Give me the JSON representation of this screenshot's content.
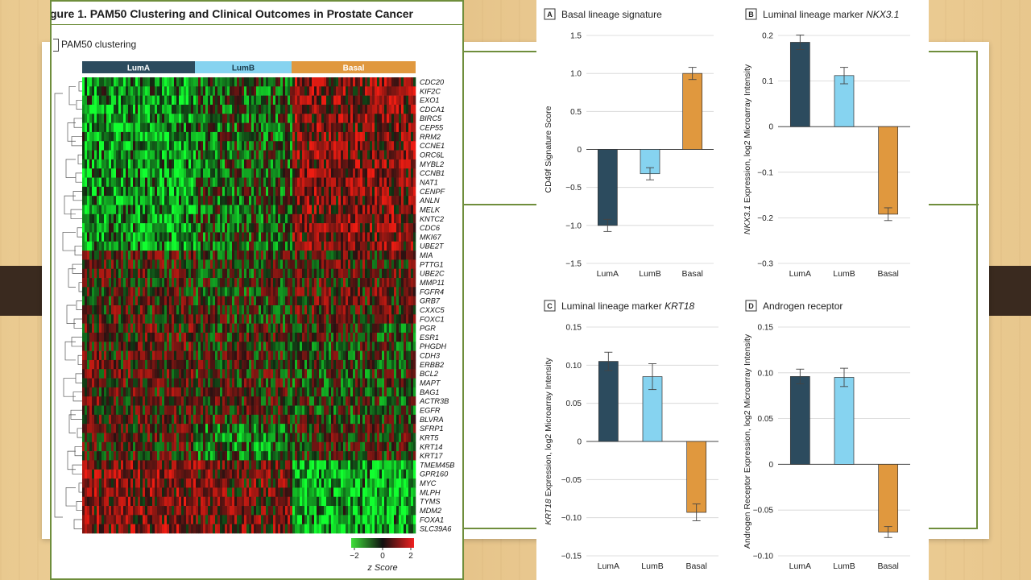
{
  "figure": {
    "title": "gure 1. PAM50 Clustering and Clinical Outcomes in Prostate Cancer",
    "subpanel_label": "PAM50 clustering"
  },
  "heatmap": {
    "groups": [
      "LumA",
      "LumB",
      "Basal"
    ],
    "group_colors": [
      "#2c4b5e",
      "#86d3f0",
      "#e0983e"
    ],
    "genes": [
      "CDC20",
      "KIF2C",
      "EXO1",
      "CDCA1",
      "BIRC5",
      "CEP55",
      "RRM2",
      "CCNE1",
      "ORC6L",
      "MYBL2",
      "CCNB1",
      "NAT1",
      "CENPF",
      "ANLN",
      "MELK",
      "KNTC2",
      "CDC6",
      "MKI67",
      "UBE2T",
      "MIA",
      "PTTG1",
      "UBE2C",
      "MMP11",
      "FGFR4",
      "GRB7",
      "CXXC5",
      "FOXC1",
      "PGR",
      "ESR1",
      "PHGDH",
      "CDH3",
      "ERBB2",
      "BCL2",
      "MAPT",
      "BAG1",
      "ACTR3B",
      "EGFR",
      "BLVRA",
      "SFRP1",
      "KRT5",
      "KRT14",
      "KRT17",
      "TMEM45B",
      "GPR160",
      "MYC",
      "MLPH",
      "TYMS",
      "MDM2",
      "FOXA1",
      "SLC39A6"
    ],
    "colorbar": {
      "ticks": [
        "−2",
        "0",
        "2"
      ],
      "label": "z Score"
    }
  },
  "chart_data": [
    {
      "type": "bar",
      "panel": "A",
      "title": "Basal lineage signature",
      "title_gene": "",
      "ylabel": "CD49f Signature Score",
      "ylabel_gene": "",
      "categories": [
        "LumA",
        "LumB",
        "Basal"
      ],
      "values": [
        -1.0,
        -0.32,
        1.0
      ],
      "errors": [
        0.08,
        0.08,
        0.08
      ],
      "ylim": [
        -1.5,
        1.5
      ],
      "yticks": [
        1.5,
        1.0,
        0.5,
        0,
        -0.5,
        -1.0,
        -1.5
      ],
      "ytick_labels": [
        "1.5",
        "1.0",
        "0.5",
        "0",
        "−0.5",
        "−1.0",
        "−1.5"
      ],
      "grid": true
    },
    {
      "type": "bar",
      "panel": "B",
      "title": "Luminal lineage marker ",
      "title_gene": "NKX3.1",
      "ylabel": " Expression, log2 Microarray Intensity",
      "ylabel_gene": "NKX3.1",
      "categories": [
        "LumA",
        "LumB",
        "Basal"
      ],
      "values": [
        0.185,
        0.112,
        -0.192
      ],
      "errors": [
        0.016,
        0.018,
        0.014
      ],
      "ylim": [
        -0.3,
        0.2
      ],
      "yticks": [
        0.2,
        0.1,
        0,
        -0.1,
        -0.2,
        -0.3
      ],
      "ytick_labels": [
        "0.2",
        "0.1",
        "0",
        "−0.1",
        "−0.2",
        "−0.3"
      ],
      "grid": true
    },
    {
      "type": "bar",
      "panel": "C",
      "title": "Luminal lineage marker ",
      "title_gene": "KRT18",
      "ylabel": " Expression, log2 Microarray Intensity",
      "ylabel_gene": "KRT18",
      "categories": [
        "LumA",
        "LumB",
        "Basal"
      ],
      "values": [
        0.105,
        0.085,
        -0.093
      ],
      "errors": [
        0.012,
        0.017,
        0.011
      ],
      "ylim": [
        -0.15,
        0.15
      ],
      "yticks": [
        0.15,
        0.1,
        0.05,
        0,
        -0.05,
        -0.1,
        -0.15
      ],
      "ytick_labels": [
        "0.15",
        "0.10",
        "0.05",
        "0",
        "−0.05",
        "−0.10",
        "−0.15"
      ],
      "grid": true
    },
    {
      "type": "bar",
      "panel": "D",
      "title": "Androgen receptor",
      "title_gene": "",
      "ylabel": "Androgen Receptor Expression, log2 Microarray Intensity",
      "ylabel_gene": "",
      "categories": [
        "LumA",
        "LumB",
        "Basal"
      ],
      "values": [
        0.096,
        0.095,
        -0.074
      ],
      "errors": [
        0.008,
        0.01,
        0.006
      ],
      "ylim": [
        -0.1,
        0.15
      ],
      "yticks": [
        0.15,
        0.1,
        0.05,
        0,
        -0.05,
        -0.1
      ],
      "ytick_labels": [
        "0.15",
        "0.10",
        "0.05",
        "0",
        "−0.05",
        "−0.10"
      ],
      "grid": true
    }
  ]
}
